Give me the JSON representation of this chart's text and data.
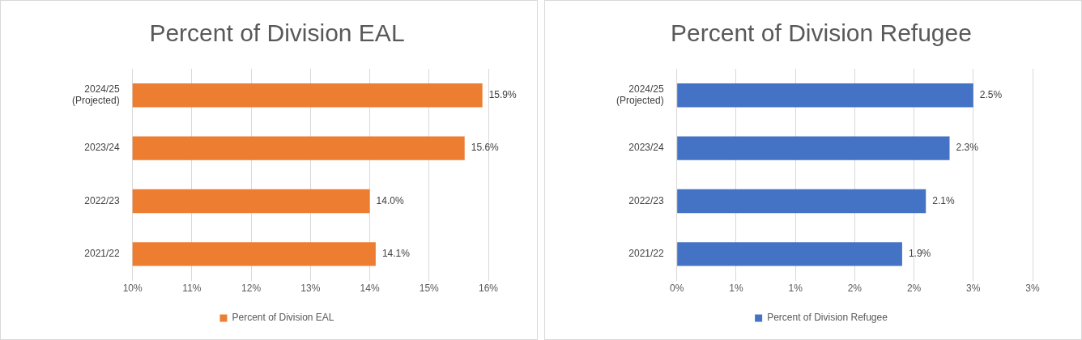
{
  "chart_data": [
    {
      "type": "bar",
      "orientation": "horizontal",
      "title": "Percent of Division EAL",
      "categories": [
        "2024/25 (Projected)",
        "2023/24",
        "2022/23",
        "2021/22"
      ],
      "series": [
        {
          "name": "Percent of Division EAL",
          "color": "#ed7d31",
          "values": [
            15.9,
            15.6,
            14.0,
            14.1
          ],
          "value_labels": [
            "15.9%",
            "15.6%",
            "14.0%",
            "14.1%"
          ]
        }
      ],
      "xlim": [
        10,
        16
      ],
      "xticks": [
        {
          "value": 10,
          "label": "10%"
        },
        {
          "value": 11,
          "label": "11%"
        },
        {
          "value": 12,
          "label": "12%"
        },
        {
          "value": 13,
          "label": "13%"
        },
        {
          "value": 14,
          "label": "14%"
        },
        {
          "value": 15,
          "label": "15%"
        },
        {
          "value": 16,
          "label": "16%"
        }
      ],
      "grid": "x",
      "legend": "bottom"
    },
    {
      "type": "bar",
      "orientation": "horizontal",
      "title": "Percent of Division Refugee",
      "categories": [
        "2024/25 (Projected)",
        "2023/24",
        "2022/23",
        "2021/22"
      ],
      "series": [
        {
          "name": "Percent of Division Refugee",
          "color": "#4472c4",
          "values": [
            2.5,
            2.3,
            2.1,
            1.9
          ],
          "value_labels": [
            "2.5%",
            "2.3%",
            "2.1%",
            "1.9%"
          ]
        }
      ],
      "xlim": [
        0,
        3
      ],
      "xticks": [
        {
          "value": 0,
          "label": "0%"
        },
        {
          "value": 0.5,
          "label": "1%"
        },
        {
          "value": 1,
          "label": "1%"
        },
        {
          "value": 1.5,
          "label": "2%"
        },
        {
          "value": 2,
          "label": "2%"
        },
        {
          "value": 2.5,
          "label": "3%"
        },
        {
          "value": 3,
          "label": "3%"
        }
      ],
      "grid": "x",
      "legend": "bottom"
    }
  ]
}
